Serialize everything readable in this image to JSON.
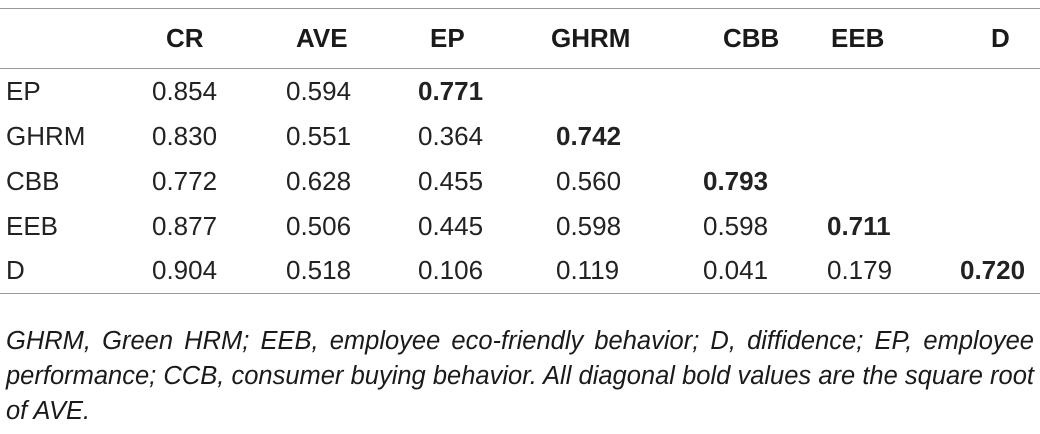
{
  "table": {
    "headers": [
      "",
      "CR",
      "AVE",
      "EP",
      "GHRM",
      "CBB",
      "EEB",
      "D"
    ],
    "rows": [
      {
        "label": "EP",
        "cells": [
          "0.854",
          "0.594",
          "0.771",
          "",
          "",
          "",
          ""
        ],
        "bold_index": 2
      },
      {
        "label": "GHRM",
        "cells": [
          "0.830",
          "0.551",
          "0.364",
          "0.742",
          "",
          "",
          ""
        ],
        "bold_index": 3
      },
      {
        "label": "CBB",
        "cells": [
          "0.772",
          "0.628",
          "0.455",
          "0.560",
          "0.793",
          "",
          ""
        ],
        "bold_index": 4
      },
      {
        "label": "EEB",
        "cells": [
          "0.877",
          "0.506",
          "0.445",
          "0.598",
          "0.598",
          "0.711",
          ""
        ],
        "bold_index": 5
      },
      {
        "label": "D",
        "cells": [
          "0.904",
          "0.518",
          "0.106",
          "0.119",
          "0.041",
          "0.179",
          "0.720"
        ],
        "bold_index": 6
      }
    ]
  },
  "footnote": "GHRM, Green HRM; EEB, employee eco-friendly behavior; D, diffidence; EP, employee performance; CCB, consumer buying behavior. All diagonal bold values are the square root of AVE."
}
